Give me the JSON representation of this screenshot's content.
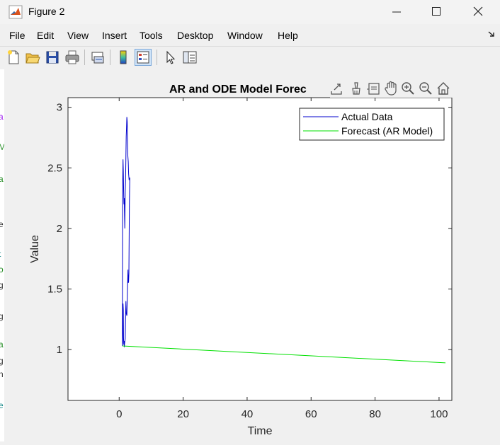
{
  "window": {
    "title": "Figure 2"
  },
  "menu": {
    "items": [
      "File",
      "Edit",
      "View",
      "Insert",
      "Tools",
      "Desktop",
      "Window",
      "Help"
    ]
  },
  "toolbar": {
    "buttons": [
      "new-figure-icon",
      "open-file-icon",
      "save-icon",
      "print-icon",
      "link-plot-icon",
      "colorbar-icon",
      "legend-icon",
      "select-pointer-icon",
      "property-inspector-icon"
    ]
  },
  "axes_toolbar": {
    "buttons": [
      "export-icon",
      "brush-icon",
      "data-tips-icon",
      "pan-icon",
      "zoom-in-icon",
      "zoom-out-icon",
      "restore-view-icon"
    ]
  },
  "left_strip": {
    "chars": [
      "a",
      "M",
      "a",
      "e",
      "t",
      "o",
      "g",
      "g",
      "a",
      "g",
      "n",
      "e"
    ]
  },
  "colors": {
    "actual": "#0000cd",
    "forecast": "#00e000"
  },
  "chart_data": {
    "type": "line",
    "title": "AR and ODE Model Forec",
    "xlabel": "Time",
    "ylabel": "Value",
    "xlim": [
      -16,
      104
    ],
    "ylim": [
      0.58,
      3.08
    ],
    "xticks": [
      0,
      20,
      40,
      60,
      80,
      100
    ],
    "yticks": [
      1,
      1.5,
      2,
      2.5,
      3
    ],
    "grid": false,
    "legend_position": "top-right",
    "series": [
      {
        "name": "Actual Data",
        "color": "#0000cd",
        "x": [
          1.0,
          1.1,
          1.15,
          1.2,
          1.3,
          1.35,
          1.45,
          1.55,
          1.6,
          1.7,
          1.9,
          2.0,
          2.1,
          2.2,
          2.4,
          2.6,
          2.75,
          2.85,
          2.95,
          3.05,
          3.2,
          3.3,
          3.3,
          3.1,
          2.95,
          2.85,
          2.7,
          2.6,
          2.5,
          2.4,
          2.3,
          2.2,
          2.1,
          2.0,
          1.9,
          1.85,
          1.75,
          1.7,
          1.6,
          1.5,
          1.4,
          1.3,
          1.2,
          1.1,
          1.0
        ],
        "y": [
          1.03,
          1.06,
          1.2,
          1.38,
          1.33,
          1.1,
          1.04,
          1.07,
          1.02,
          1.05,
          1.09,
          1.28,
          1.4,
          1.3,
          1.28,
          1.5,
          1.66,
          1.55,
          1.56,
          1.63,
          2.2,
          2.4,
          2.42,
          2.4,
          2.45,
          2.55,
          2.6,
          2.75,
          2.88,
          2.92,
          2.84,
          2.76,
          2.6,
          2.4,
          2.3,
          2.2,
          2.0,
          2.1,
          2.25,
          2.2,
          2.3,
          2.48,
          2.57,
          2.35,
          1.03
        ]
      },
      {
        "name": "Forecast (AR Model)",
        "color": "#00e000",
        "x": [
          1,
          102
        ],
        "y": [
          1.03,
          0.89
        ]
      }
    ]
  }
}
